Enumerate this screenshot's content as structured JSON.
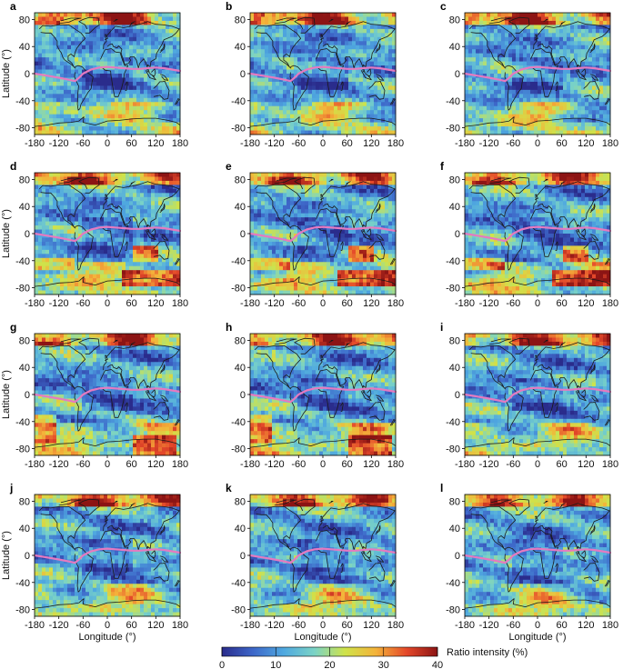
{
  "chart_data": {
    "type": "heatmap",
    "panels": [
      {
        "label": "a",
        "ylabel": "Latitude (°)",
        "xlabel": ""
      },
      {
        "label": "b",
        "ylabel": "",
        "xlabel": ""
      },
      {
        "label": "c",
        "ylabel": "",
        "xlabel": ""
      },
      {
        "label": "d",
        "ylabel": "Latitude (°)",
        "xlabel": ""
      },
      {
        "label": "e",
        "ylabel": "",
        "xlabel": ""
      },
      {
        "label": "f",
        "ylabel": "",
        "xlabel": ""
      },
      {
        "label": "g",
        "ylabel": "Latitude (°)",
        "xlabel": ""
      },
      {
        "label": "h",
        "ylabel": "",
        "xlabel": ""
      },
      {
        "label": "i",
        "ylabel": "",
        "xlabel": ""
      },
      {
        "label": "j",
        "ylabel": "Latitude (°)",
        "xlabel": "Longitude (°)"
      },
      {
        "label": "k",
        "ylabel": "",
        "xlabel": "Longitude (°)"
      },
      {
        "label": "l",
        "ylabel": "",
        "xlabel": "Longitude (°)"
      }
    ],
    "xlim": [
      -180,
      180
    ],
    "ylim": [
      -90,
      90
    ],
    "xticks": [
      -180,
      -120,
      -60,
      0,
      60,
      120,
      180
    ],
    "yticks": [
      -80,
      -40,
      0,
      40,
      80
    ],
    "colorbar": {
      "label": "Ratio intensity (%)",
      "range": [
        0,
        40
      ],
      "ticks": [
        0,
        10,
        20,
        30,
        40
      ],
      "colormap": [
        "#2a2c8c",
        "#3d66c8",
        "#4fa8e0",
        "#7ad3c6",
        "#cfe34a",
        "#f4b33a",
        "#e4482a",
        "#8c1414"
      ]
    },
    "overlay_line_color": "#e57ac0",
    "overlay_line": {
      "lon": [
        -180,
        -150,
        -120,
        -95,
        -80,
        -70,
        -60,
        -40,
        -20,
        0,
        20,
        40,
        60,
        80,
        100,
        120,
        140,
        160,
        180
      ],
      "lat": [
        0,
        -3,
        -6,
        -9,
        -11,
        -6,
        0,
        6,
        9,
        10,
        9,
        8,
        7,
        7,
        8,
        9,
        8,
        6,
        4
      ]
    }
  }
}
